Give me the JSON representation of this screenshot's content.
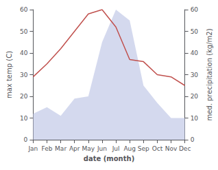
{
  "chart_data": {
    "type": "line",
    "categories": [
      "Jan",
      "Feb",
      "Mar",
      "Apr",
      "May",
      "Jun",
      "Jul",
      "Aug",
      "Sep",
      "Oct",
      "Nov",
      "Dec"
    ],
    "xlabel": "date (month)",
    "ylabel": "max temp (C)",
    "y2label": "med. precipitation (kg/m2)",
    "series": [
      {
        "type": "area",
        "axis": "y2",
        "color": "#c5cce8",
        "values": [
          12,
          15,
          11,
          19,
          20,
          45,
          60,
          55,
          25,
          17,
          10,
          10
        ]
      },
      {
        "type": "line",
        "color": "#c0504d",
        "values": [
          29,
          35,
          42,
          50,
          58,
          60,
          52,
          37,
          36,
          30,
          29,
          25
        ]
      }
    ],
    "ylim": [
      0,
      60
    ],
    "yticks": [
      0,
      10,
      20,
      30,
      40,
      50,
      60
    ],
    "y2lim": [
      0,
      60
    ],
    "y2ticks": [
      0,
      10,
      20,
      30,
      40,
      50,
      60
    ],
    "grid": false
  }
}
